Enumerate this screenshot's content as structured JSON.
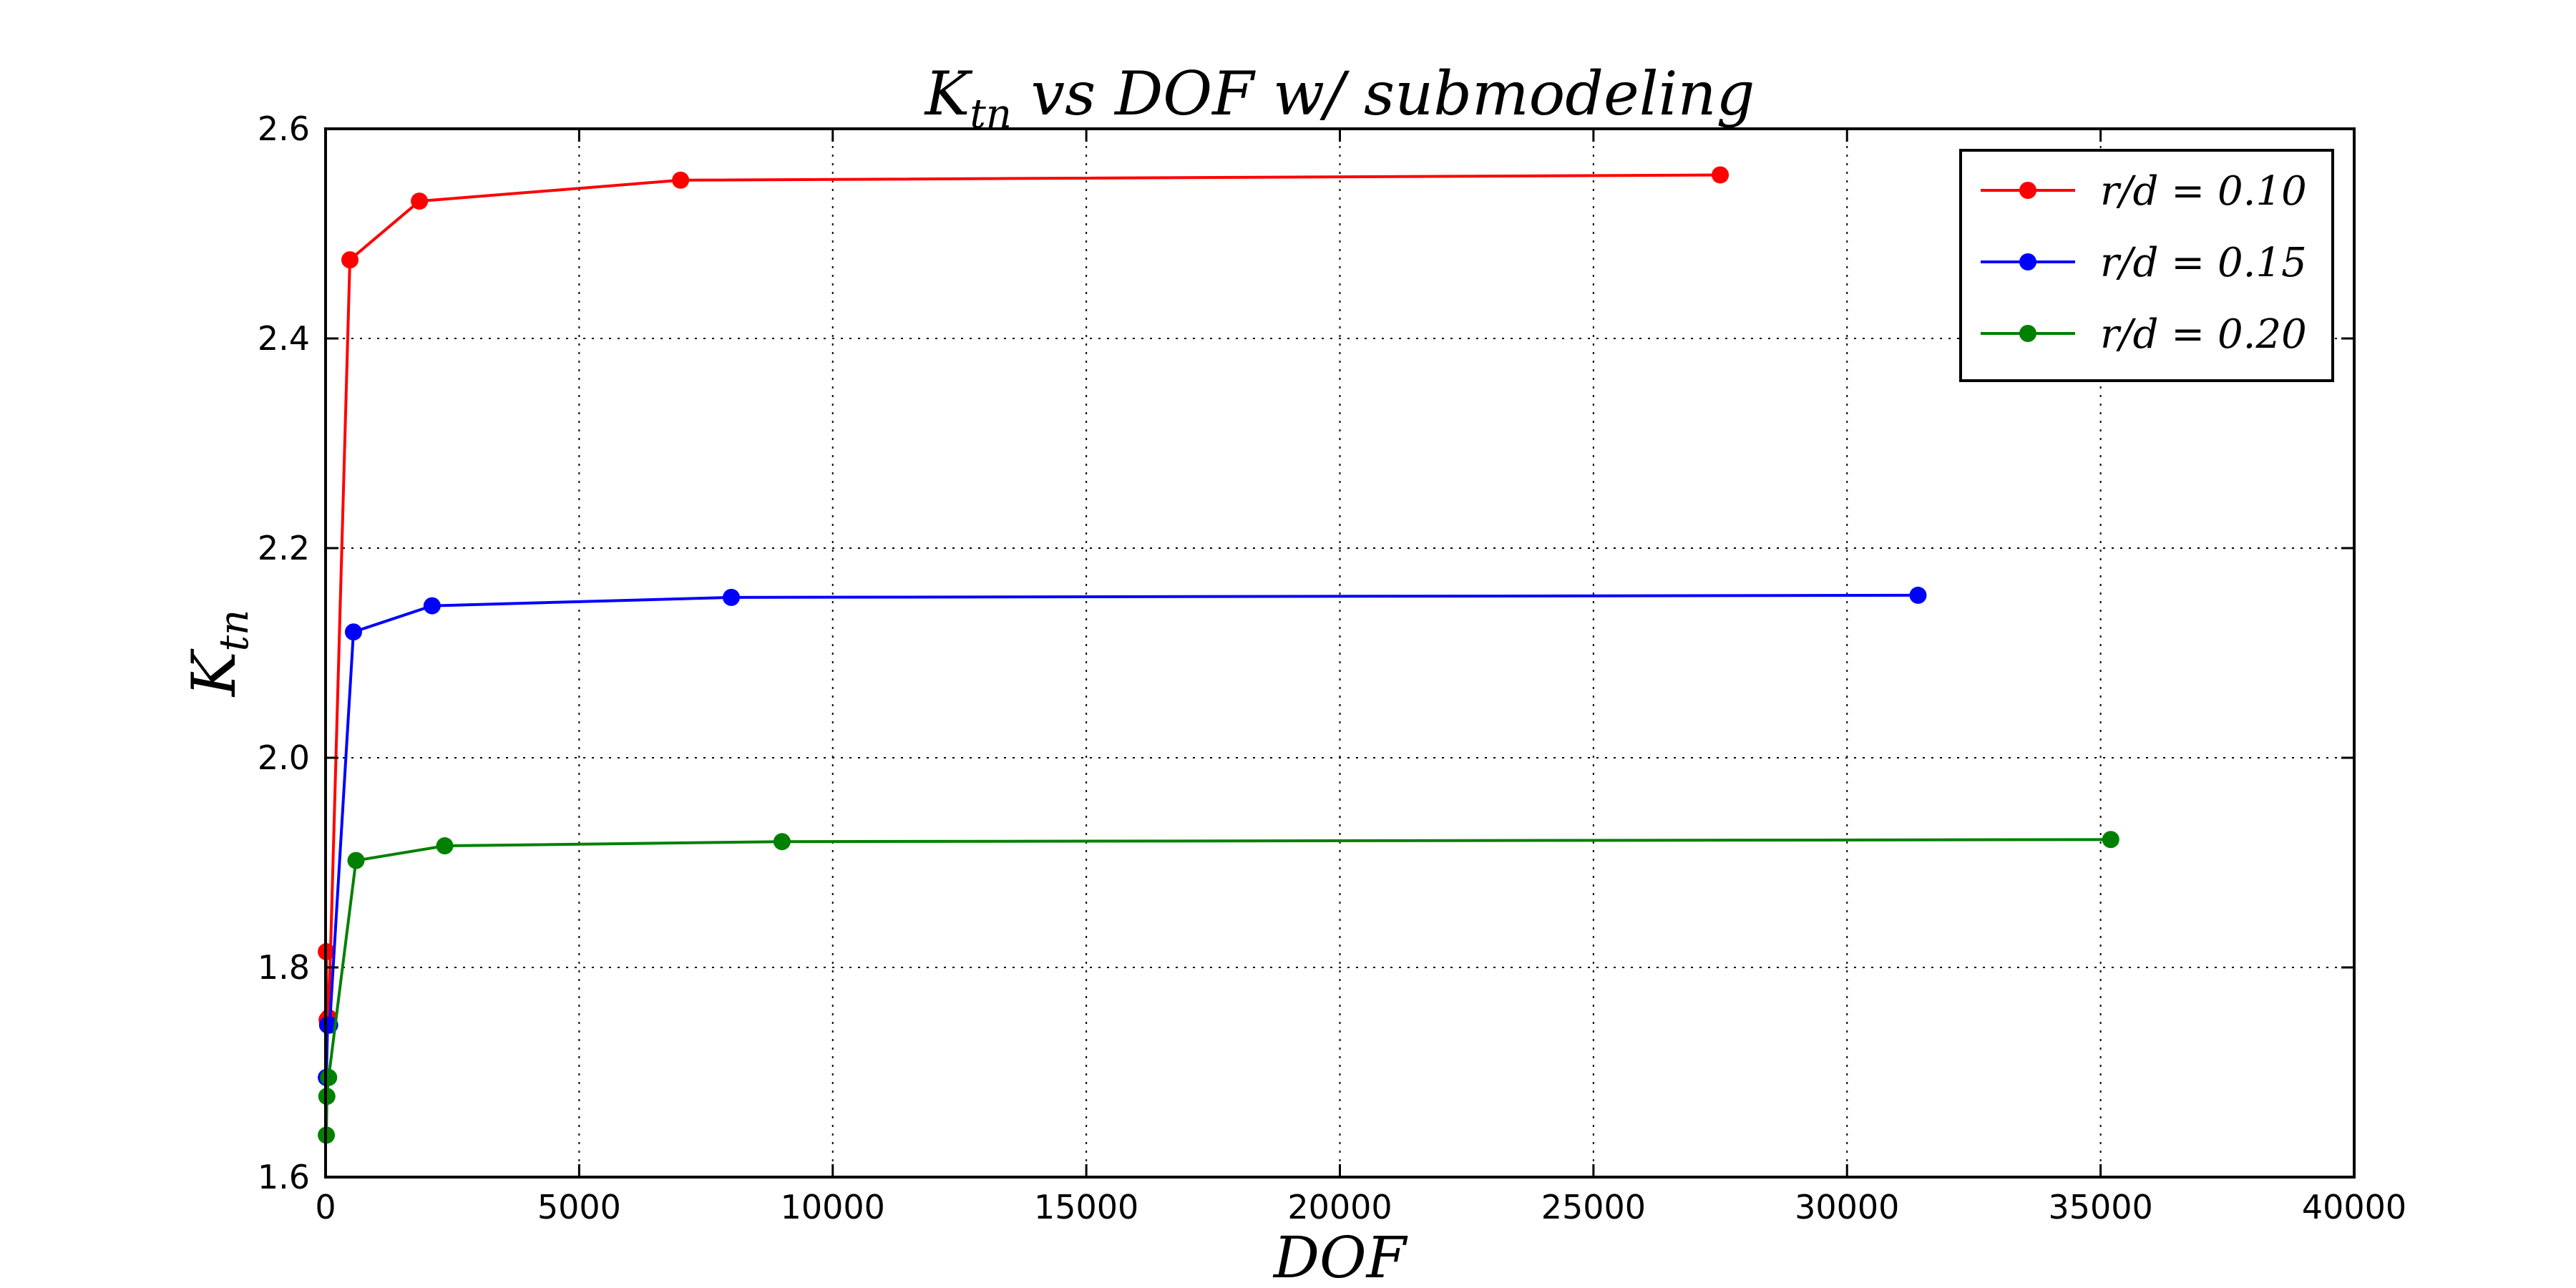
{
  "chart_data": {
    "type": "line",
    "title": {
      "symbol": "K",
      "subscript": "tn",
      "rest": " vs DOF w/ submodeling"
    },
    "xlabel": "DOF",
    "ylabel": {
      "symbol": "K",
      "subscript": "tn"
    },
    "xlim": [
      0,
      40000
    ],
    "ylim": [
      1.6,
      2.6
    ],
    "xticks": [
      0,
      5000,
      10000,
      15000,
      20000,
      25000,
      30000,
      35000,
      40000
    ],
    "yticks": [
      1.6,
      1.8,
      2.0,
      2.2,
      2.4,
      2.6
    ],
    "xtick_labels": [
      "0",
      "5000",
      "10000",
      "15000",
      "20000",
      "25000",
      "30000",
      "35000",
      "40000"
    ],
    "ytick_labels": [
      "1.6",
      "1.8",
      "2.0",
      "2.2",
      "2.4",
      "2.6"
    ],
    "grid": true,
    "legend_position": "top-right",
    "series": [
      {
        "name": "r/d = 0.10",
        "color": "#ff0000",
        "x": [
          15,
          30,
          60,
          480,
          1850,
          7000,
          27500
        ],
        "y": [
          1.815,
          1.75,
          1.752,
          2.475,
          2.531,
          2.551,
          2.556
        ]
      },
      {
        "name": "r/d = 0.15",
        "color": "#0000ff",
        "x": [
          15,
          40,
          80,
          550,
          2100,
          8000,
          31400
        ],
        "y": [
          1.695,
          1.745,
          1.745,
          2.12,
          2.145,
          2.153,
          2.155
        ]
      },
      {
        "name": "r/d = 0.20",
        "color": "#008000",
        "x": [
          15,
          25,
          60,
          600,
          2350,
          9000,
          35200
        ],
        "y": [
          1.64,
          1.677,
          1.695,
          1.902,
          1.916,
          1.92,
          1.922
        ]
      }
    ]
  }
}
